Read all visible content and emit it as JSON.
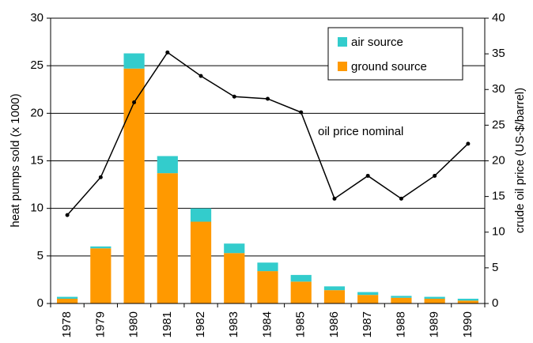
{
  "chart_data": {
    "type": "bar",
    "stacked": true,
    "categories": [
      "1978",
      "1979",
      "1980",
      "1981",
      "1982",
      "1983",
      "1984",
      "1985",
      "1986",
      "1987",
      "1988",
      "1989",
      "1990"
    ],
    "series": [
      {
        "name": "ground source",
        "color": "#ff9900",
        "type": "bar",
        "values": [
          0.5,
          5.8,
          24.7,
          13.7,
          8.6,
          5.3,
          3.4,
          2.3,
          1.4,
          0.9,
          0.6,
          0.5,
          0.3
        ]
      },
      {
        "name": "air source",
        "color": "#33cccc",
        "type": "bar",
        "values": [
          0.2,
          0.2,
          1.6,
          1.8,
          1.4,
          1.0,
          0.9,
          0.7,
          0.4,
          0.3,
          0.2,
          0.2,
          0.2
        ]
      },
      {
        "name": "oil price nominal",
        "color": "#000000",
        "type": "line",
        "axis": "y2",
        "values": [
          12.4,
          17.7,
          28.2,
          35.2,
          31.9,
          29.0,
          28.7,
          26.8,
          14.7,
          17.9,
          14.7,
          17.9,
          22.4
        ]
      }
    ],
    "y_label": "heat pumps sold (x 1000)",
    "y2_label": "crude oil price (US-$/barrel)",
    "ylim": [
      0,
      30
    ],
    "yticks": [
      0,
      5,
      10,
      15,
      20,
      25,
      30
    ],
    "y2lim": [
      0,
      40
    ],
    "y2ticks": [
      0,
      5,
      10,
      15,
      20,
      25,
      30,
      35,
      40
    ],
    "grid": true,
    "legend": "upper right"
  }
}
